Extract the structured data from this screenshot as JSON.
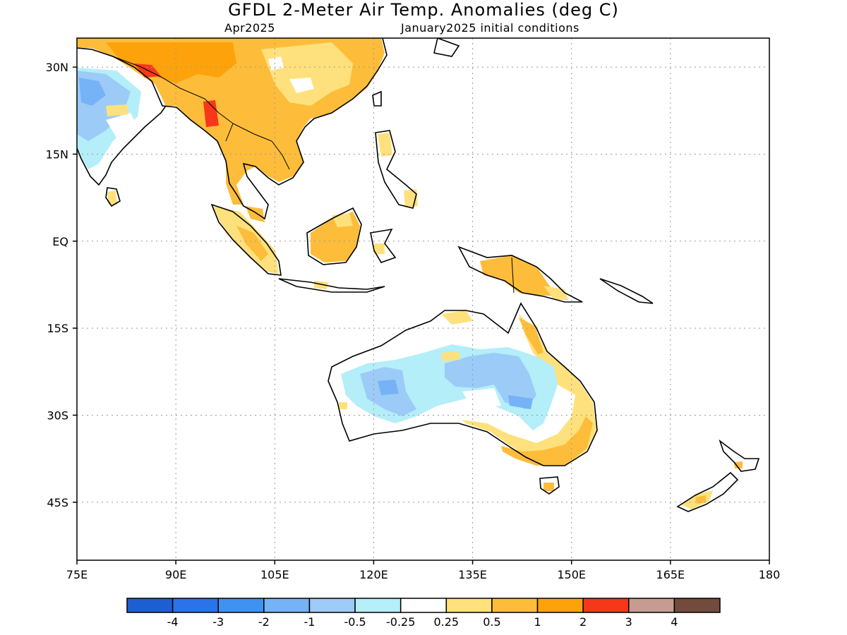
{
  "header": {
    "title": "GFDL 2-Meter Air Temp. Anomalies (deg C)",
    "valid_month": "Apr2025",
    "init_text": "January2025 initial conditions"
  },
  "axes": {
    "lon_labels": [
      "75E",
      "90E",
      "105E",
      "120E",
      "135E",
      "150E",
      "165E",
      "180"
    ],
    "lon_values": [
      75,
      90,
      105,
      120,
      135,
      150,
      165,
      180
    ],
    "lat_labels": [
      "30N",
      "15N",
      "EQ",
      "15S",
      "30S",
      "45S"
    ],
    "lat_values": [
      30,
      15,
      0,
      -15,
      -30,
      -45
    ],
    "lon_range": [
      75,
      180
    ],
    "lat_range": [
      -55,
      35
    ],
    "grid": "dotted"
  },
  "legend": {
    "labels": [
      "-4",
      "-3",
      "-2",
      "-1",
      "-0.5",
      "-0.25",
      "0.25",
      "0.5",
      "1",
      "2",
      "3",
      "4"
    ],
    "colors": [
      "#1d5fd0",
      "#2a73e8",
      "#3e92f0",
      "#76b2f6",
      "#9ccbf7",
      "#b4eef9",
      "#ffffff",
      "#fee17c",
      "#fdbd3a",
      "#fea20b",
      "#f6371a",
      "#c79c90",
      "#734b3c"
    ]
  },
  "map": {
    "land_outline_color": "#000000",
    "regions": [
      {
        "name": "south-asia-warm",
        "level": "0.5"
      },
      {
        "name": "tibet-china-warm",
        "level": "1"
      },
      {
        "name": "himalaya-hot",
        "level": "2"
      },
      {
        "name": "india-cool",
        "level": "-1"
      },
      {
        "name": "australia-interior-cool",
        "level": "-0.5"
      },
      {
        "name": "east-australia-warm",
        "level": "0.5"
      },
      {
        "name": "new-guinea-warm",
        "level": "0.5"
      },
      {
        "name": "borneo-warm",
        "level": "0.5"
      },
      {
        "name": "sumatra-warm",
        "level": "0.5"
      },
      {
        "name": "new-zealand-warm",
        "level": "0.5"
      }
    ]
  }
}
